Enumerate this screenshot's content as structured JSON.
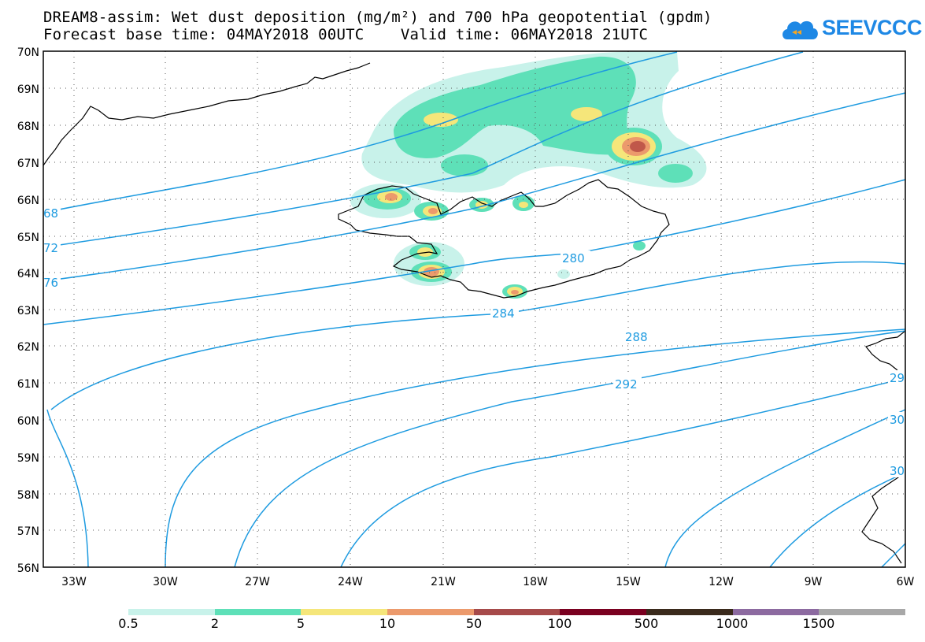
{
  "title": {
    "line1": "DREAM8-assim: Wet dust deposition (mg/m²) and 700 hPa geopotential (gpdm)",
    "line2": "Forecast base time: 04MAY2018 00UTC    Valid time: 06MAY2018 21UTC"
  },
  "logo": {
    "text": "SEEVCCC",
    "icon": "cloud-icon",
    "color": "#1e88e5"
  },
  "axes": {
    "lat_labels": [
      "70N",
      "69N",
      "68N",
      "67N",
      "66N",
      "65N",
      "64N",
      "63N",
      "62N",
      "61N",
      "60N",
      "59N",
      "58N",
      "57N",
      "56N"
    ],
    "lon_labels": [
      "33W",
      "30W",
      "27W",
      "24W",
      "21W",
      "18W",
      "15W",
      "12W",
      "9W",
      "6W"
    ]
  },
  "contours": {
    "color": "#1e9be0",
    "labels": [
      "68",
      "72",
      "76",
      "280",
      "284",
      "288",
      "292",
      "29",
      "30",
      "30"
    ]
  },
  "colorbar": {
    "labels": [
      "0.5",
      "2",
      "5",
      "10",
      "50",
      "100",
      "500",
      "1000",
      "1500"
    ],
    "colors": [
      "#c8f2ea",
      "#5ee0b8",
      "#f5e67a",
      "#ec9a6c",
      "#a64a4a",
      "#7a0020",
      "#3a2a1c",
      "#8c6aa0",
      "#a8a8a8"
    ]
  }
}
